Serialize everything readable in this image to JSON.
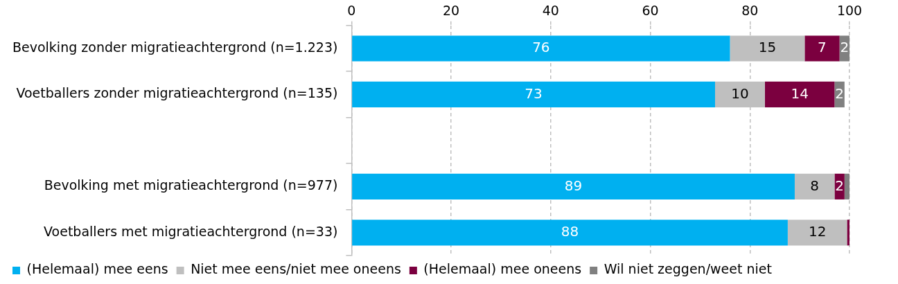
{
  "chart_data": {
    "type": "bar",
    "orientation": "horizontal",
    "stacked": true,
    "categories": [
      "Bevolking zonder migratieachtergrond (n=1.223)",
      "Voetballers zonder migratieachtergrond (n=135)",
      null,
      "Bevolking met migratieachtergrond (n=977)",
      "Voetballers met migratieachtergrond (n=33)"
    ],
    "series": [
      {
        "name": "(Helemaal) mee eens",
        "color": "#00b0f0",
        "values": [
          76,
          73,
          null,
          89,
          87.6
        ],
        "value_labels": [
          "76",
          "73",
          null,
          "89",
          "88"
        ]
      },
      {
        "name": "Niet mee eens/niet mee oneens",
        "color": "#bfbfbf",
        "values": [
          15,
          10,
          null,
          8,
          11.9
        ],
        "value_labels": [
          "15",
          "10",
          null,
          "8",
          "12"
        ]
      },
      {
        "name": "(Helemaal) mee oneens",
        "color": "#7b003f",
        "values": [
          7,
          14,
          null,
          2,
          0.5
        ],
        "value_labels": [
          "7",
          "14",
          null,
          "2",
          null
        ]
      },
      {
        "name": "Wil niet zeggen/weet niet",
        "color": "#808080",
        "values": [
          2,
          2,
          null,
          1,
          null
        ],
        "value_labels": [
          "2",
          "2",
          null,
          null,
          null
        ]
      }
    ],
    "xlim": [
      0,
      100
    ],
    "xticks": [
      0,
      20,
      40,
      60,
      80,
      100
    ],
    "grid": "x",
    "legend": "bottom"
  }
}
